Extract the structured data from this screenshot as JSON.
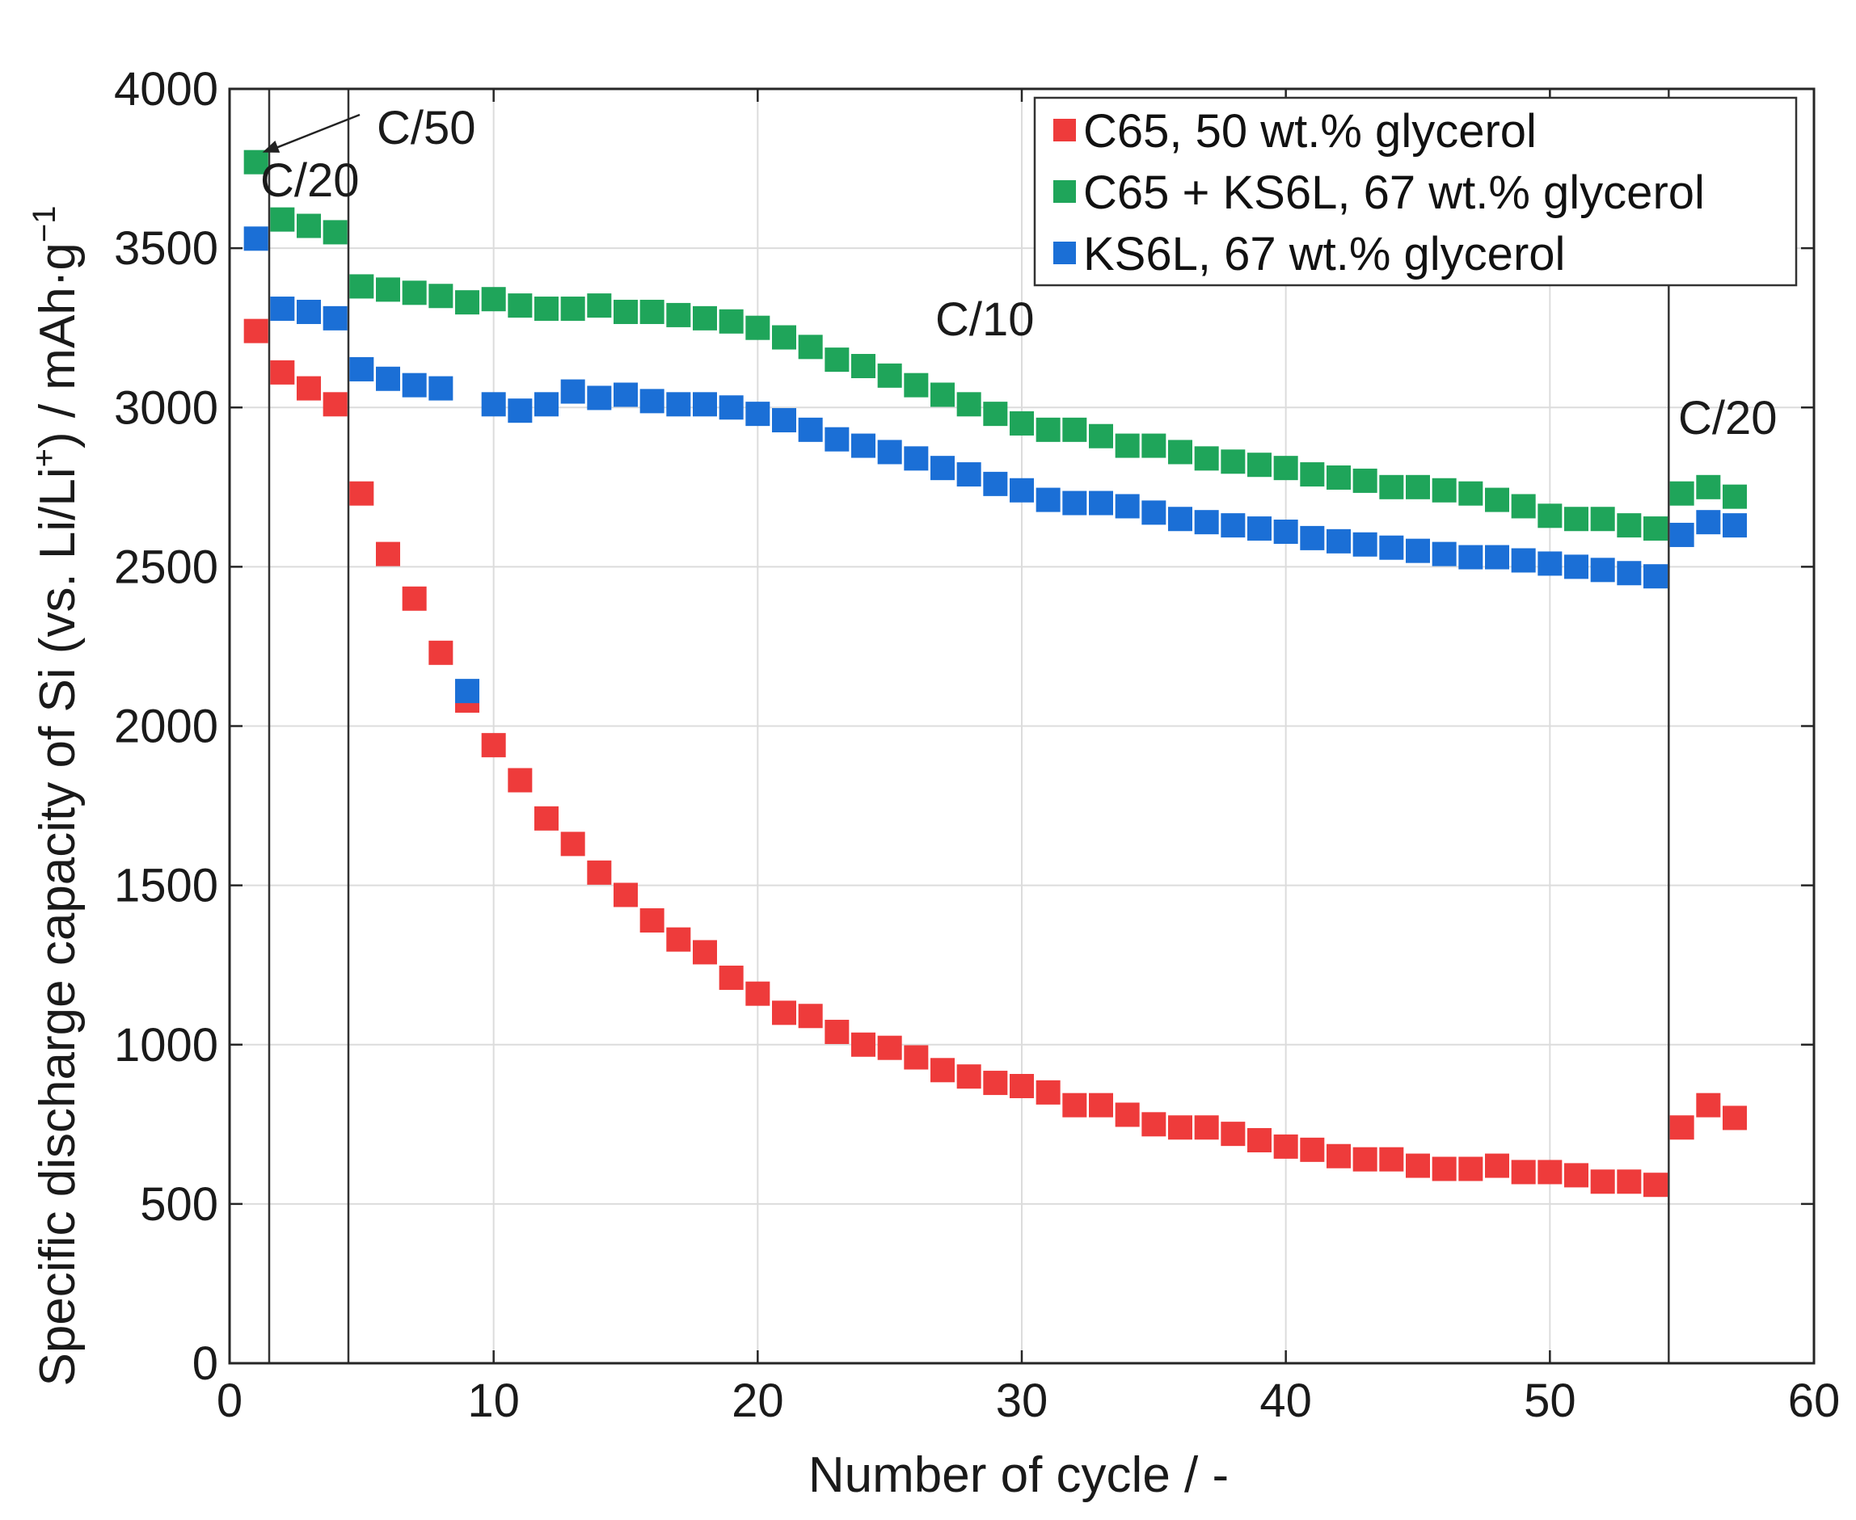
{
  "chart_data": {
    "type": "scatter",
    "title": "",
    "xlabel": "Number of cycle / -",
    "ylabel": {
      "main": "Specific discharge capacity of Si (vs. Li/Li",
      "sup1": "+",
      "mid": ") / mAh·g",
      "sup2": "−1"
    },
    "xlim": [
      0,
      60
    ],
    "ylim": [
      0,
      4000
    ],
    "xticks": [
      "0",
      "10",
      "20",
      "30",
      "40",
      "50",
      "60"
    ],
    "yticks": [
      "0",
      "500",
      "1000",
      "1500",
      "2000",
      "2500",
      "3000",
      "3500",
      "4000"
    ],
    "grid": true,
    "legend_position": "top-right",
    "rate_dividers_x": [
      1.5,
      4.5,
      54.5
    ],
    "annotations": {
      "c50": "C/50",
      "c20_left": "C/20",
      "c10": "C/10",
      "c20_right": "C/20"
    },
    "series": [
      {
        "name": "C65, 50 wt.% glycerol",
        "color": "#ee3b3b",
        "x": [
          1,
          2,
          3,
          4,
          5,
          6,
          7,
          8,
          9,
          10,
          11,
          12,
          13,
          14,
          15,
          16,
          17,
          18,
          19,
          20,
          21,
          22,
          23,
          24,
          25,
          26,
          27,
          28,
          29,
          30,
          31,
          32,
          33,
          34,
          35,
          36,
          37,
          38,
          39,
          40,
          41,
          42,
          43,
          44,
          45,
          46,
          47,
          48,
          49,
          50,
          51,
          52,
          53,
          54,
          55,
          56,
          57
        ],
        "y": [
          3240,
          3110,
          3060,
          3010,
          2730,
          2540,
          2400,
          2230,
          2080,
          1940,
          1830,
          1710,
          1630,
          1540,
          1470,
          1390,
          1330,
          1290,
          1210,
          1160,
          1100,
          1090,
          1040,
          1000,
          990,
          960,
          920,
          900,
          880,
          870,
          850,
          810,
          810,
          780,
          750,
          740,
          740,
          720,
          700,
          680,
          670,
          650,
          640,
          640,
          620,
          610,
          610,
          620,
          600,
          600,
          590,
          570,
          570,
          560,
          740,
          810,
          770
        ]
      },
      {
        "name": "C65 + KS6L, 67 wt.% glycerol",
        "color": "#1fa55a",
        "x": [
          1,
          2,
          3,
          4,
          5,
          6,
          7,
          8,
          9,
          10,
          11,
          12,
          13,
          14,
          15,
          16,
          17,
          18,
          19,
          20,
          21,
          22,
          23,
          24,
          25,
          26,
          27,
          28,
          29,
          30,
          31,
          32,
          33,
          34,
          35,
          36,
          37,
          38,
          39,
          40,
          41,
          42,
          43,
          44,
          45,
          46,
          47,
          48,
          49,
          50,
          51,
          52,
          53,
          54,
          55,
          56,
          57
        ],
        "y": [
          3770,
          3590,
          3570,
          3550,
          3380,
          3370,
          3360,
          3350,
          3330,
          3340,
          3320,
          3310,
          3310,
          3320,
          3300,
          3300,
          3290,
          3280,
          3270,
          3250,
          3220,
          3190,
          3150,
          3130,
          3100,
          3070,
          3040,
          3010,
          2980,
          2950,
          2930,
          2930,
          2910,
          2880,
          2880,
          2860,
          2840,
          2830,
          2820,
          2810,
          2790,
          2780,
          2770,
          2750,
          2750,
          2740,
          2730,
          2710,
          2690,
          2660,
          2650,
          2650,
          2630,
          2620,
          2730,
          2750,
          2720
        ]
      },
      {
        "name": "KS6L, 67 wt.% glycerol",
        "color": "#1b6fd6",
        "x": [
          1,
          2,
          3,
          4,
          5,
          6,
          7,
          8,
          9,
          10,
          11,
          12,
          13,
          14,
          15,
          16,
          17,
          18,
          19,
          20,
          21,
          22,
          23,
          24,
          25,
          26,
          27,
          28,
          29,
          30,
          31,
          32,
          33,
          34,
          35,
          36,
          37,
          38,
          39,
          40,
          41,
          42,
          43,
          44,
          45,
          46,
          47,
          48,
          49,
          50,
          51,
          52,
          53,
          54,
          55,
          56,
          57
        ],
        "y": [
          3530,
          3310,
          3300,
          3280,
          3120,
          3090,
          3070,
          3060,
          2110,
          3010,
          2990,
          3010,
          3050,
          3030,
          3040,
          3020,
          3010,
          3010,
          3000,
          2980,
          2960,
          2930,
          2900,
          2880,
          2860,
          2840,
          2810,
          2790,
          2760,
          2740,
          2710,
          2700,
          2700,
          2690,
          2670,
          2650,
          2640,
          2630,
          2620,
          2610,
          2590,
          2580,
          2570,
          2560,
          2550,
          2540,
          2530,
          2530,
          2520,
          2510,
          2500,
          2490,
          2480,
          2470,
          2600,
          2640,
          2630
        ]
      }
    ]
  }
}
